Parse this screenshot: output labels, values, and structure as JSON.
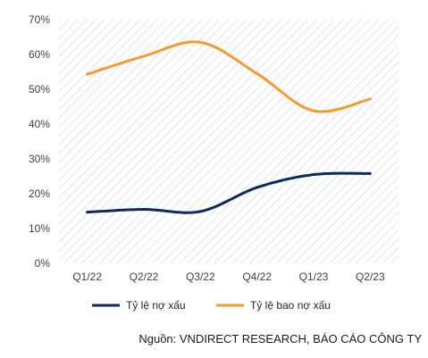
{
  "chart_data": {
    "type": "line",
    "categories": [
      "Q1/22",
      "Q2/22",
      "Q3/22",
      "Q4/22",
      "Q1/23",
      "Q2/23"
    ],
    "series": [
      {
        "name": "Tỷ lệ nợ xấu",
        "values": [
          14.7,
          15.5,
          14.9,
          21.8,
          25.5,
          25.8
        ],
        "color": "#0d2a5c"
      },
      {
        "name": "Tỷ lệ bao nợ xấu",
        "values": [
          54.3,
          59.5,
          63.5,
          54.5,
          43.8,
          47.2
        ],
        "color": "#f39a33"
      }
    ],
    "ylim": [
      0,
      70
    ],
    "yticks": [
      "0%",
      "10%",
      "20%",
      "30%",
      "40%",
      "50%",
      "60%",
      "70%"
    ],
    "grid": "hatched plot background",
    "legend_position": "bottom",
    "source": "Nguồn: VNDIRECT RESEARCH, BÁO CÁO CÔNG TY"
  }
}
